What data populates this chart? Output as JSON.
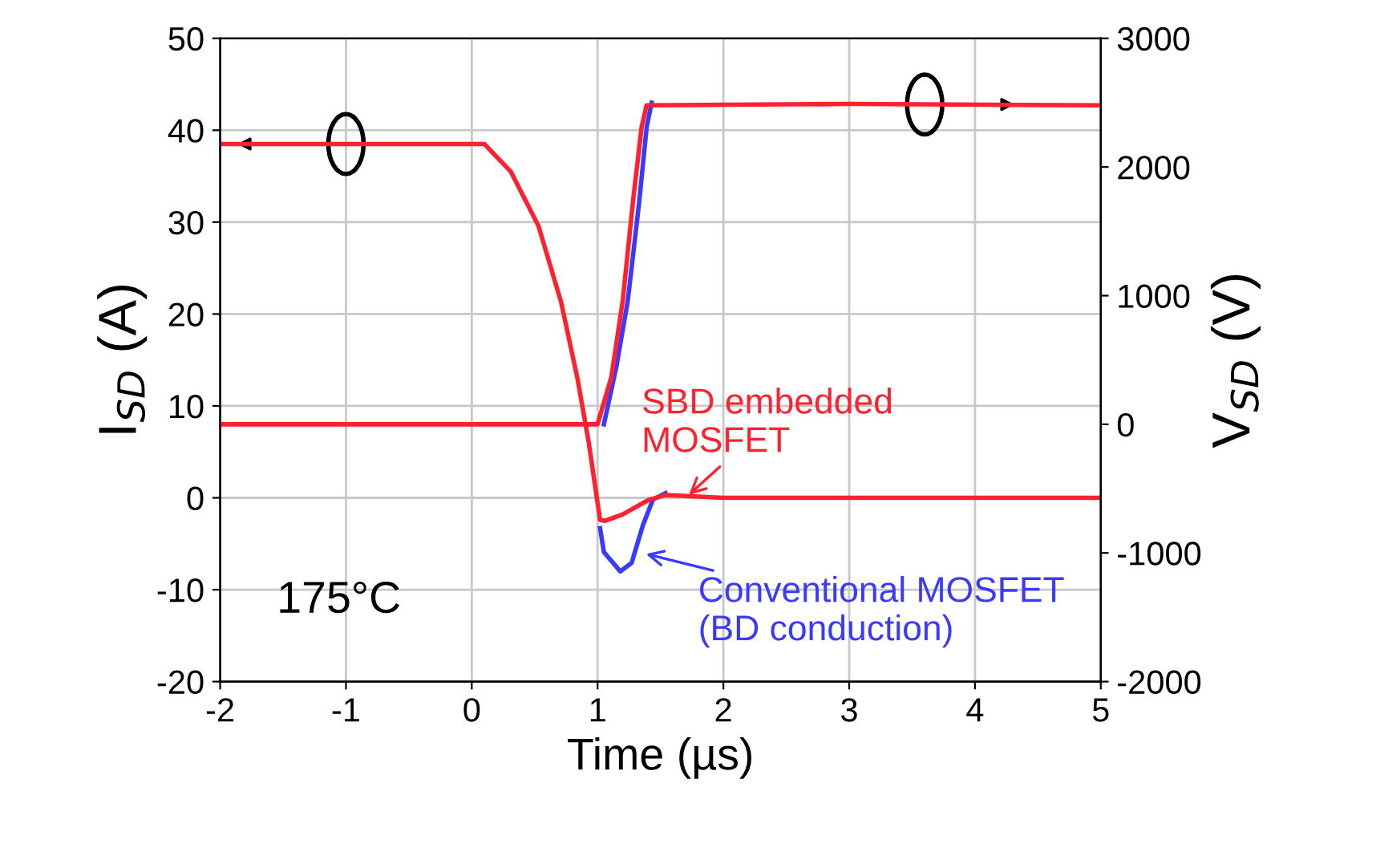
{
  "chart_data": {
    "type": "line",
    "xlabel": "Time (µs)",
    "ylabel": "I$_{SD}$ (A)",
    "y2label": "V$_{SD}$ (V)",
    "xlim": [
      -2,
      5
    ],
    "xticks": [
      -2,
      -1,
      0,
      1,
      2,
      3,
      4,
      5
    ],
    "ylim": [
      -20,
      50
    ],
    "yticks": [
      -20,
      -10,
      0,
      10,
      20,
      30,
      40,
      50
    ],
    "y2lim": [
      -2000,
      3000
    ],
    "y2ticks": [
      -2000,
      -1000,
      0,
      1000,
      2000,
      3000
    ],
    "grid": true,
    "legend": false,
    "marker": "none",
    "line_style": "solid",
    "series": [
      {
        "color": "#3a3aff",
        "x": [
          1.02,
          1.05,
          1.18,
          1.27,
          1.36,
          1.44,
          1.54
        ],
        "values": [
          -3.3,
          -5.9,
          -8,
          -7.1,
          -3,
          -0.2,
          0.5
        ]
      },
      {
        "color": "#ff2030",
        "x": [
          -2,
          0.1,
          0.31,
          0.53,
          0.71,
          0.84,
          0.93,
          1.02,
          1.06,
          1.2,
          1.41,
          1.54,
          2,
          3,
          4,
          5
        ],
        "values": [
          38.5,
          38.5,
          35.5,
          29.6,
          21.3,
          13,
          6,
          -2.4,
          -2.5,
          -1.8,
          -0.2,
          0.3,
          0,
          0,
          0,
          0
        ]
      },
      {
        "color": "#3a3aff",
        "axis": "y2",
        "x": [
          1.05,
          1.15,
          1.24,
          1.33,
          1.39,
          1.43
        ],
        "values": [
          0,
          450,
          960,
          1720,
          2310,
          2500
        ]
      },
      {
        "color": "#ff2030",
        "axis": "y2",
        "x": [
          -2,
          1.0,
          1.11,
          1.2,
          1.28,
          1.35,
          1.39,
          3,
          5
        ],
        "values": [
          0,
          0,
          370,
          960,
          1720,
          2310,
          2480,
          2490,
          2480
        ]
      }
    ],
    "annotations": [
      {
        "text": "SBD embedded\nMOSFET",
        "x": 1.7,
        "y": 0
      },
      {
        "text": "Conventional MOSFET\n(BD conduction)",
        "x": 1.35,
        "y": -6
      },
      "175°C"
    ]
  }
}
